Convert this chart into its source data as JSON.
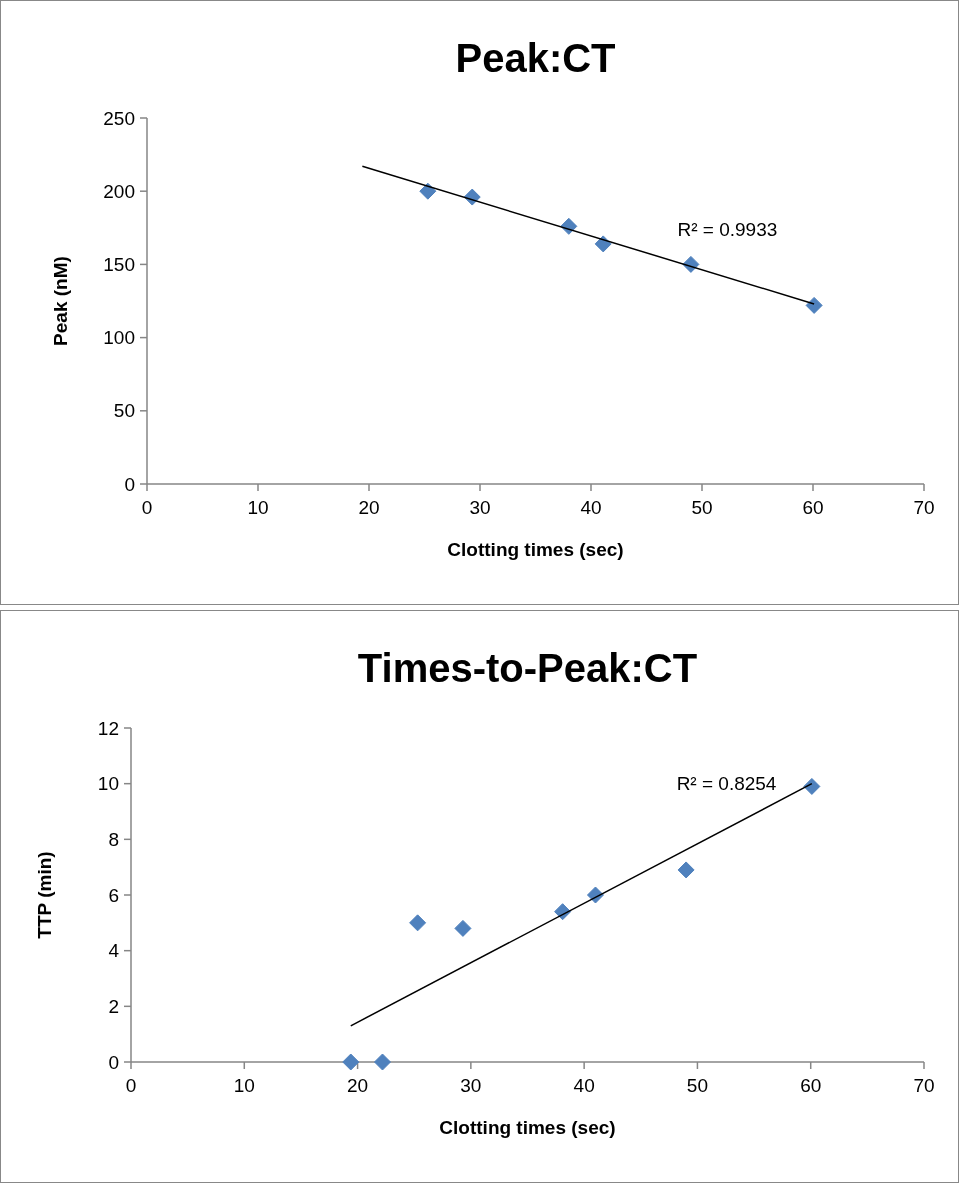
{
  "chart_data": [
    {
      "type": "scatter",
      "title": "Peak:CT",
      "xlabel": "Clotting times (sec)",
      "ylabel": "Peak (nM)",
      "xlim": [
        0,
        70
      ],
      "xticks": [
        0,
        10,
        20,
        30,
        40,
        50,
        60,
        70
      ],
      "ylim": [
        0,
        250
      ],
      "yticks": [
        0,
        50,
        100,
        150,
        200,
        250
      ],
      "marker": "diamond",
      "grid": false,
      "series": [
        {
          "color": "#4f81bd",
          "x": [
            25.3,
            29.3,
            38.0,
            41.1,
            49.0,
            60.1
          ],
          "values": [
            200,
            196,
            176,
            164,
            150,
            122
          ]
        },
        {
          "type": "line",
          "color": "#000000",
          "marker": "none",
          "x": [
            19.4,
            60.1
          ],
          "values": [
            217,
            123
          ]
        }
      ],
      "annotations": [
        "R² = 0.9933"
      ]
    },
    {
      "type": "scatter",
      "title": "Times-to-Peak:CT",
      "xlabel": "Clotting times (sec)",
      "ylabel": "TTP (min)",
      "xlim": [
        0,
        70
      ],
      "xticks": [
        0,
        10,
        20,
        30,
        40,
        50,
        60,
        70
      ],
      "ylim": [
        0,
        12
      ],
      "yticks": [
        0,
        2,
        4,
        6,
        8,
        10,
        12
      ],
      "marker": "diamond",
      "grid": false,
      "series": [
        {
          "color": "#4f81bd",
          "x": [
            19.4,
            22.2,
            25.3,
            29.3,
            38.1,
            41.0,
            49.0,
            60.1
          ],
          "values": [
            0,
            0,
            5.0,
            4.8,
            5.4,
            6.0,
            6.9,
            9.9
          ]
        },
        {
          "type": "line",
          "color": "#000000",
          "marker": "none",
          "x": [
            19.4,
            60.1
          ],
          "values": [
            1.3,
            10.0
          ]
        }
      ],
      "annotations": [
        "R² = 0.8254"
      ]
    }
  ]
}
